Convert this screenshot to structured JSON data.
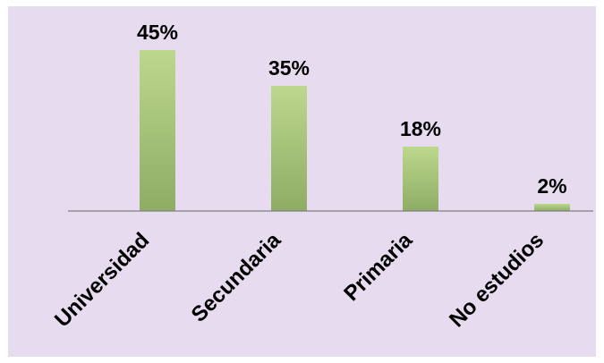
{
  "chart_data": {
    "type": "bar",
    "categories": [
      "Universidad",
      "Secundaria",
      "Primaria",
      "No estudios"
    ],
    "values": [
      45,
      35,
      18,
      2
    ],
    "value_labels": [
      "45%",
      "35%",
      "18%",
      "2%"
    ],
    "ylim": [
      0,
      50
    ],
    "grid": false,
    "legend": "none",
    "title": "",
    "xlabel": "",
    "ylabel": "",
    "colors": {
      "background": "#e6dbef",
      "bar_top": "#bcd88d",
      "bar_bottom": "#8fac65",
      "axis": "#7f7f7f"
    }
  }
}
